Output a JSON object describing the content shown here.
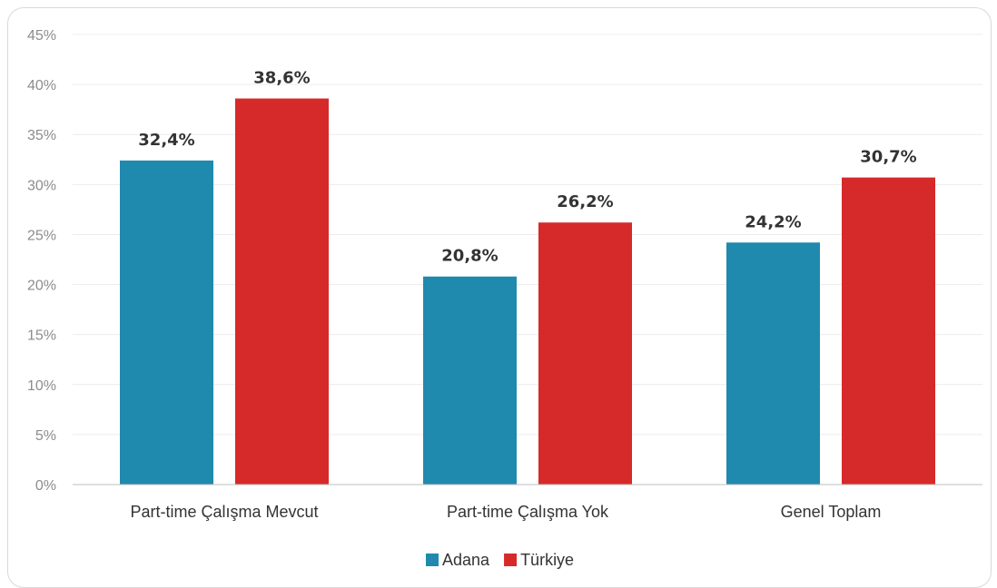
{
  "chart_data": {
    "type": "bar",
    "categories": [
      "Part-time Çalışma Mevcut",
      "Part-time Çalışma Yok",
      "Genel Toplam"
    ],
    "series": [
      {
        "name": "Adana",
        "values": [
          32.4,
          20.8,
          24.2
        ],
        "labels": [
          "32,4%",
          "20,8%",
          "24,2%"
        ],
        "color": "#1f8aad"
      },
      {
        "name": "Türkiye",
        "values": [
          38.6,
          26.2,
          30.7
        ],
        "labels": [
          "38,6%",
          "26,2%",
          "30,7%"
        ],
        "color": "#d62929"
      }
    ],
    "yticks": [
      "0%",
      "5%",
      "10%",
      "15%",
      "20%",
      "25%",
      "30%",
      "35%",
      "40%",
      "45%"
    ],
    "ylim": [
      0,
      45
    ],
    "grid": true,
    "legend_position": "bottom"
  }
}
